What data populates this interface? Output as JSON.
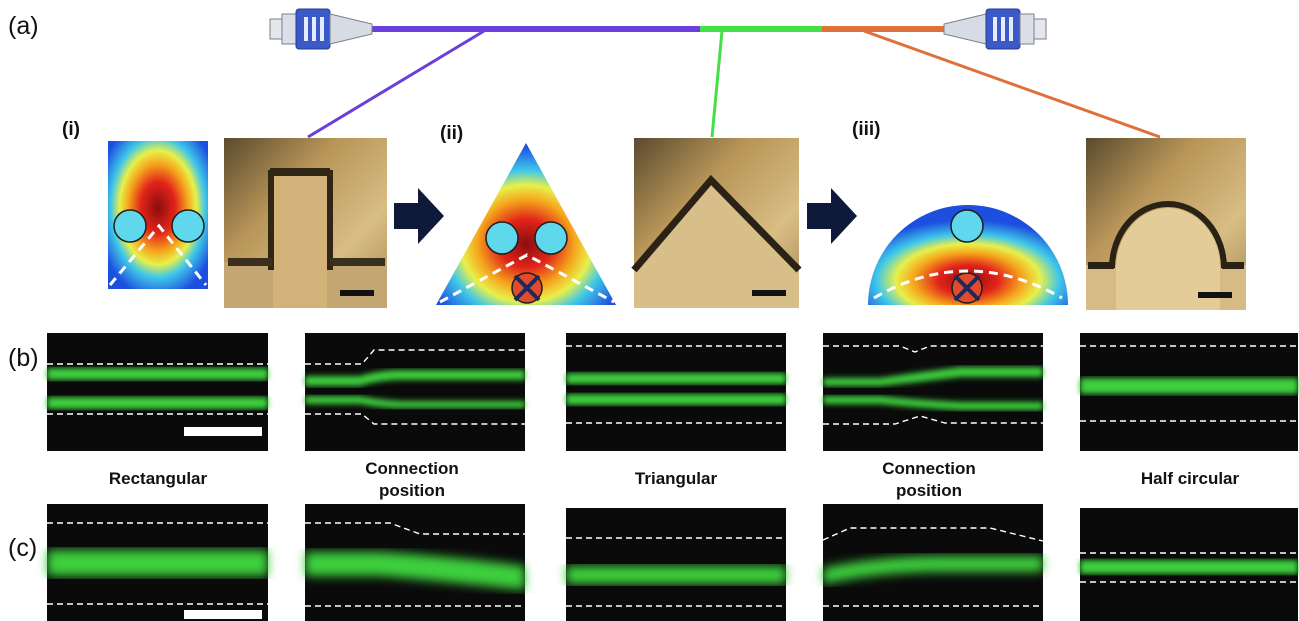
{
  "panel_labels": [
    "(a)",
    "(b)",
    "(c)"
  ],
  "sublabels": [
    "(i)",
    "(ii)",
    "(iii)"
  ],
  "captions": [
    [
      "Rectangular"
    ],
    [
      "Connection",
      "position"
    ],
    [
      "Triangular"
    ],
    [
      "Connection",
      "position"
    ],
    [
      "Half circular"
    ]
  ],
  "colors": {
    "fiber_section_1": "#6a3fdc",
    "fiber_section_2": "#45e045",
    "fiber_section_3": "#e0703a",
    "connector": "#3b5ac8",
    "arrow": "#0f1a3a",
    "particle": "#5fd8ee",
    "stream": "#3ecf3e",
    "micrograph": "#c9a56a"
  },
  "icons": [
    "fiber-connector-icon",
    "right-arrow-icon",
    "blocked-position-icon"
  ]
}
